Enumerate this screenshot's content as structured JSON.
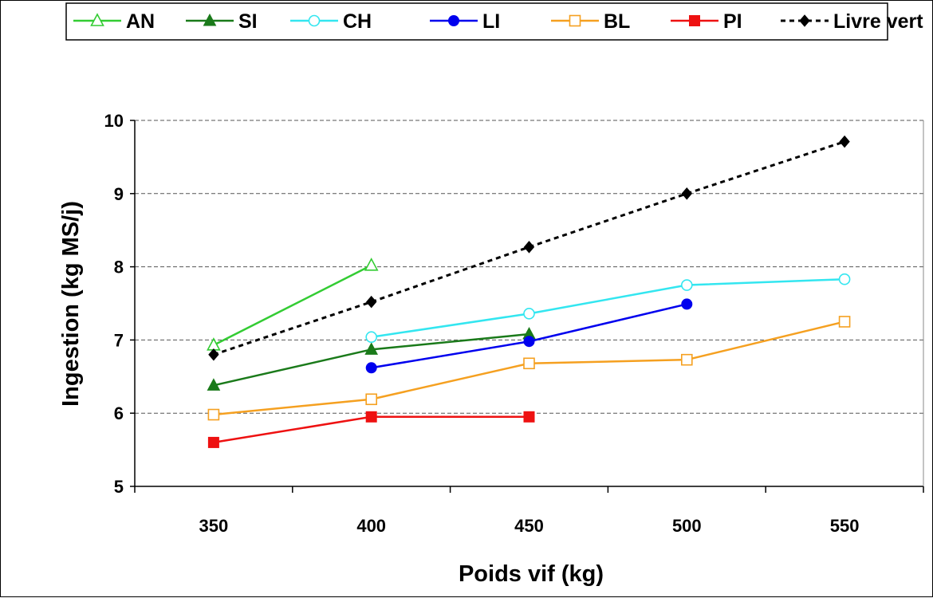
{
  "chart_data": {
    "type": "line",
    "xlabel": "Poids vif (kg)",
    "ylabel": "Ingestion (kg MS/j)",
    "x": [
      350,
      400,
      450,
      500,
      550
    ],
    "x_tick_labels": [
      "350",
      "400",
      "450",
      "500",
      "550"
    ],
    "ylim": [
      5,
      10
    ],
    "y_tick_labels": [
      "5",
      "6",
      "7",
      "8",
      "9",
      "10"
    ],
    "grid": "horizontal dashed",
    "legend_position": "top",
    "series": [
      {
        "name": "AN",
        "color": "#33cc33",
        "marker": "triangle-open",
        "dashed": false,
        "points": [
          [
            350,
            6.93
          ],
          [
            400,
            8.02
          ]
        ]
      },
      {
        "name": "SI",
        "color": "#1a7a1a",
        "marker": "triangle-filled",
        "dashed": false,
        "points": [
          [
            350,
            6.38
          ],
          [
            400,
            6.87
          ],
          [
            450,
            7.08
          ]
        ]
      },
      {
        "name": "CH",
        "color": "#33e6f0",
        "marker": "circle-open",
        "dashed": false,
        "points": [
          [
            400,
            7.04
          ],
          [
            450,
            7.36
          ],
          [
            500,
            7.75
          ],
          [
            550,
            7.83
          ]
        ]
      },
      {
        "name": "LI",
        "color": "#0000ee",
        "marker": "circle-filled",
        "dashed": false,
        "points": [
          [
            400,
            6.62
          ],
          [
            450,
            6.98
          ],
          [
            500,
            7.49
          ]
        ]
      },
      {
        "name": "BL",
        "color": "#f5a020",
        "marker": "square-open",
        "dashed": false,
        "points": [
          [
            350,
            5.98
          ],
          [
            400,
            6.19
          ],
          [
            450,
            6.68
          ],
          [
            500,
            6.73
          ],
          [
            550,
            7.25
          ]
        ]
      },
      {
        "name": "PI",
        "color": "#ee1111",
        "marker": "square-filled",
        "dashed": false,
        "points": [
          [
            350,
            5.6
          ],
          [
            400,
            5.95
          ],
          [
            450,
            5.95
          ]
        ]
      },
      {
        "name": "Livre vert",
        "color": "#000000",
        "marker": "diamond-filled",
        "dashed": true,
        "points": [
          [
            350,
            6.8
          ],
          [
            400,
            7.52
          ],
          [
            450,
            8.27
          ],
          [
            500,
            9.0
          ],
          [
            550,
            9.71
          ]
        ]
      }
    ]
  }
}
